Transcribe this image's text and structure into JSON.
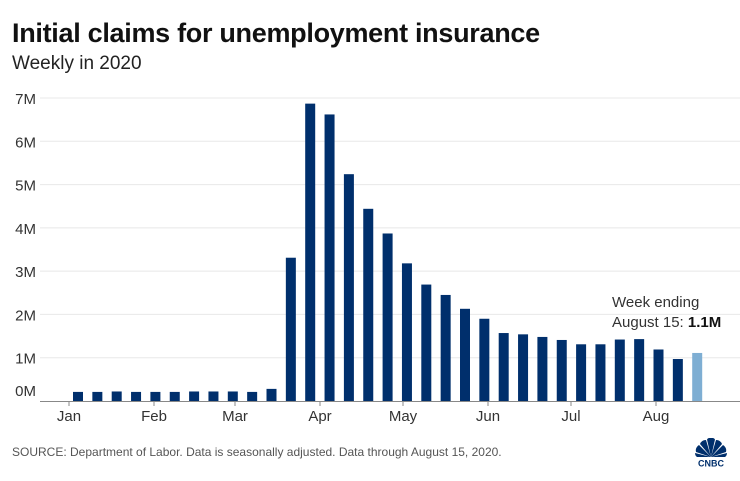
{
  "title": "Initial claims for unemployment insurance",
  "subtitle": "Weekly in 2020",
  "source": "SOURCE: Department of Labor. Data is seasonally adjusted. Data through August 15, 2020.",
  "logo": "CNBC",
  "annotation": {
    "line1": "Week ending",
    "line2": "August 15: ",
    "value": "1.1M"
  },
  "chart_data": {
    "type": "bar",
    "title": "Initial claims for unemployment insurance",
    "subtitle": "Weekly in 2020",
    "xlabel": "",
    "ylabel": "",
    "ylim": [
      0,
      7
    ],
    "yunit": "millions",
    "grid": true,
    "y_ticks": [
      "0M",
      "1M",
      "2M",
      "3M",
      "4M",
      "5M",
      "6M",
      "7M"
    ],
    "x_tick_labels": [
      "Jan",
      "Feb",
      "Mar",
      "Apr",
      "May",
      "Jun",
      "Jul",
      "Aug"
    ],
    "values": [
      0.21,
      0.21,
      0.22,
      0.21,
      0.21,
      0.21,
      0.22,
      0.22,
      0.22,
      0.21,
      0.28,
      3.31,
      6.87,
      6.62,
      5.24,
      4.44,
      3.87,
      3.18,
      2.69,
      2.45,
      2.13,
      1.9,
      1.57,
      1.54,
      1.48,
      1.41,
      1.31,
      1.31,
      1.42,
      1.43,
      1.19,
      0.97,
      1.11
    ],
    "highlight_index": 32,
    "colors": {
      "bar": "#002f6c",
      "highlight": "#7eaed3",
      "grid": "#e8e8e8",
      "axis": "#888888"
    }
  }
}
